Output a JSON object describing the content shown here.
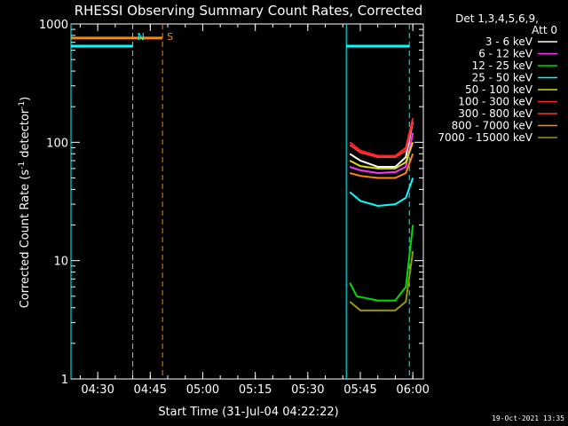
{
  "chart_data": {
    "type": "line",
    "title": "RHESSI Observing Summary Count Rates, Corrected",
    "xlabel": "Start Time (31-Jul-04 04:22:22)",
    "ylabel_main": "Corrected Count Rate (s",
    "ylabel_sup1": "-1",
    "ylabel_mid": " detector",
    "ylabel_sup2": "-1",
    "ylabel_end": ")",
    "yscale": "log",
    "ylim": [
      1,
      1000
    ],
    "yticks": [
      {
        "value": 1,
        "label": "1"
      },
      {
        "value": 10,
        "label": "10"
      },
      {
        "value": 100,
        "label": "100"
      },
      {
        "value": 1000,
        "label": "1000"
      }
    ],
    "xlim": [
      "04:22:22",
      "06:03:00"
    ],
    "xticks": [
      {
        "time": "04:30",
        "label": "04:30"
      },
      {
        "time": "04:45",
        "label": "04:45"
      },
      {
        "time": "05:00",
        "label": "05:00"
      },
      {
        "time": "05:15",
        "label": "05:15"
      },
      {
        "time": "05:30",
        "label": "05:30"
      },
      {
        "time": "05:45",
        "label": "05:45"
      },
      {
        "time": "06:00",
        "label": "06:00"
      }
    ],
    "legend_header": [
      "Det 1,3,4,5,6,9,",
      "Att 0"
    ],
    "legend_position": "right",
    "background": "#000000",
    "axis_color": "#ffffff",
    "series": [
      {
        "name": "3 - 6 keV",
        "color": "#ffffff",
        "points": [
          [
            "05:42:00",
            80
          ],
          [
            "05:45:00",
            70
          ],
          [
            "05:50:00",
            62
          ],
          [
            "05:55:00",
            62
          ],
          [
            "05:58:00",
            75
          ],
          [
            "06:00:00",
            150
          ]
        ]
      },
      {
        "name": "6 - 12 keV",
        "color": "#ff33ff",
        "points": [
          [
            "05:42:00",
            62
          ],
          [
            "05:45:00",
            58
          ],
          [
            "05:50:00",
            55
          ],
          [
            "05:55:00",
            56
          ],
          [
            "05:58:00",
            62
          ],
          [
            "06:00:00",
            120
          ]
        ]
      },
      {
        "name": "12 - 25 keV",
        "color": "#00dd00",
        "points": [
          [
            "05:42:00",
            6.5
          ],
          [
            "05:44:00",
            5
          ],
          [
            "05:50:00",
            4.6
          ],
          [
            "05:55:00",
            4.6
          ],
          [
            "05:58:00",
            6
          ],
          [
            "06:00:00",
            20
          ]
        ]
      },
      {
        "name": "25 - 50 keV",
        "color": "#00ffff",
        "points": [
          [
            "05:42:00",
            38
          ],
          [
            "05:45:00",
            32
          ],
          [
            "05:50:00",
            29
          ],
          [
            "05:55:00",
            30
          ],
          [
            "05:58:00",
            34
          ],
          [
            "06:00:00",
            50
          ]
        ]
      },
      {
        "name": "50 - 100 keV",
        "color": "#dddd00",
        "points": [
          [
            "05:42:00",
            70
          ],
          [
            "05:45:00",
            63
          ],
          [
            "05:50:00",
            60
          ],
          [
            "05:55:00",
            60
          ],
          [
            "05:58:00",
            68
          ],
          [
            "06:00:00",
            100
          ]
        ]
      },
      {
        "name": "100 - 300 keV",
        "color": "#ff2020",
        "points": [
          [
            "05:42:00",
            100
          ],
          [
            "05:45:00",
            85
          ],
          [
            "05:50:00",
            77
          ],
          [
            "05:55:00",
            77
          ],
          [
            "05:58:00",
            90
          ],
          [
            "06:00:00",
            160
          ]
        ]
      },
      {
        "name": "300 - 800 keV",
        "color": "#ff3333",
        "points": [
          [
            "05:42:00",
            95
          ],
          [
            "05:45:00",
            82
          ],
          [
            "05:50:00",
            75
          ],
          [
            "05:55:00",
            75
          ],
          [
            "05:58:00",
            85
          ],
          [
            "06:00:00",
            150
          ]
        ]
      },
      {
        "name": "800 - 7000 keV",
        "color": "#ff8800",
        "points": [
          [
            "05:42:00",
            55
          ],
          [
            "05:45:00",
            52
          ],
          [
            "05:50:00",
            50
          ],
          [
            "05:55:00",
            50
          ],
          [
            "05:58:00",
            55
          ],
          [
            "06:00:00",
            80
          ]
        ]
      },
      {
        "name": "7000 - 15000 keV",
        "color": "#999900",
        "points": [
          [
            "05:42:00",
            4.5
          ],
          [
            "05:45:00",
            3.8
          ],
          [
            "05:50:00",
            3.8
          ],
          [
            "05:55:00",
            3.8
          ],
          [
            "05:58:00",
            4.5
          ],
          [
            "06:00:00",
            12
          ]
        ]
      }
    ],
    "flags": [
      {
        "label": "",
        "color": "#00ffff",
        "y": 650,
        "from": "04:22:22",
        "to": "04:40:00"
      },
      {
        "label": "",
        "color": "#ff8800",
        "y": 760,
        "from": "04:22:22",
        "to": "04:48:30"
      },
      {
        "label": "",
        "color": "#00ffff",
        "y": 650,
        "from": "05:41:00",
        "to": "05:59:00"
      }
    ],
    "markers": [
      {
        "time": "04:40:00",
        "label": "N",
        "color": "#00ffff",
        "style": "dashed"
      },
      {
        "time": "04:48:30",
        "label": "S",
        "color": "#ff8800",
        "style": "dashed"
      },
      {
        "time": "05:59:00",
        "label": "",
        "color": "#00ffff",
        "style": "dashed"
      },
      {
        "time": "05:41:00",
        "label": "",
        "color": "#00ffff",
        "style": "solid"
      },
      {
        "time": "04:22:22",
        "label": "",
        "color": "#00ffff",
        "style": "solid"
      }
    ],
    "footer_timestamp": "19-Oct-2021 13:35"
  }
}
